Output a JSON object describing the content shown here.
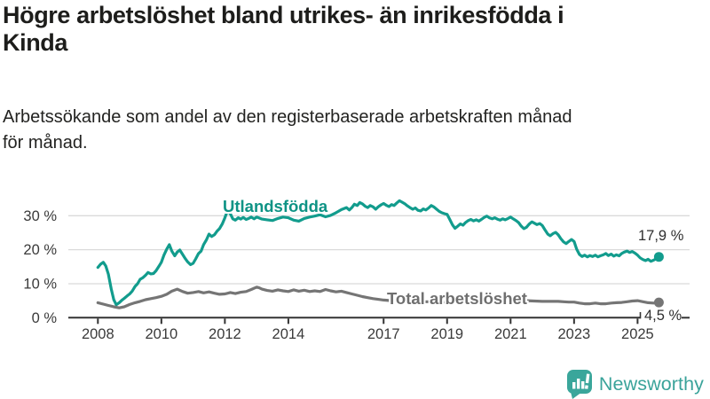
{
  "title_line1": "Högre arbetslöshet bland utrikes- än inrikesfödda i",
  "title_line2": "Kinda",
  "subtitle_line1": "Arbetssökande som andel av den registerbaserade arbetskraften månad",
  "subtitle_line2": "för månad.",
  "branding": {
    "logo_text": "Newsworthy",
    "logo_color": "#3aa69b"
  },
  "chart_data": {
    "type": "line",
    "title": "Högre arbetslöshet bland utrikes- än inrikesfödda i Kinda",
    "subtitle": "Arbetssökande som andel av den registerbaserade arbetskraften månad för månad.",
    "xlabel": "",
    "ylabel": "",
    "grid": "horizontal",
    "x_axis": {
      "ticks": [
        2008,
        2010,
        2012,
        2014,
        2017,
        2019,
        2021,
        2023,
        2025
      ],
      "labels": [
        "2008",
        "2010",
        "2012",
        "2014",
        "2017",
        "2019",
        "2021",
        "2023",
        "2025"
      ],
      "range": [
        2007.1,
        2026.4
      ]
    },
    "y_axis": {
      "ticks": [
        0,
        10,
        20,
        30
      ],
      "labels": [
        "0 %",
        "10 %",
        "20 %",
        "30 %"
      ],
      "range": [
        0,
        36
      ]
    },
    "colors": {
      "grid": "#dadada",
      "axis": "#333333",
      "tick_text": "#3a3a3a"
    },
    "series": [
      {
        "name": "Utlandsfödda",
        "color": "#129c8d",
        "end_label": "17,9 %",
        "end_value": 17.9,
        "points": [
          [
            2008.0,
            14.8
          ],
          [
            2008.08,
            15.7
          ],
          [
            2008.17,
            16.3
          ],
          [
            2008.25,
            15.2
          ],
          [
            2008.33,
            12.8
          ],
          [
            2008.42,
            8.5
          ],
          [
            2008.5,
            5.3
          ],
          [
            2008.58,
            3.8
          ],
          [
            2008.67,
            4.4
          ],
          [
            2008.75,
            5.1
          ],
          [
            2008.83,
            5.7
          ],
          [
            2008.92,
            6.4
          ],
          [
            2009.0,
            7.0
          ],
          [
            2009.08,
            7.8
          ],
          [
            2009.17,
            9.2
          ],
          [
            2009.25,
            10.0
          ],
          [
            2009.33,
            11.3
          ],
          [
            2009.42,
            11.8
          ],
          [
            2009.5,
            12.5
          ],
          [
            2009.58,
            13.3
          ],
          [
            2009.67,
            12.9
          ],
          [
            2009.75,
            13.0
          ],
          [
            2009.83,
            13.8
          ],
          [
            2009.92,
            15.1
          ],
          [
            2010.0,
            16.3
          ],
          [
            2010.08,
            18.4
          ],
          [
            2010.17,
            20.2
          ],
          [
            2010.25,
            21.5
          ],
          [
            2010.33,
            19.6
          ],
          [
            2010.42,
            18.2
          ],
          [
            2010.5,
            19.3
          ],
          [
            2010.58,
            19.9
          ],
          [
            2010.67,
            18.6
          ],
          [
            2010.75,
            17.4
          ],
          [
            2010.83,
            16.4
          ],
          [
            2010.92,
            15.6
          ],
          [
            2011.0,
            16.0
          ],
          [
            2011.08,
            17.3
          ],
          [
            2011.17,
            18.9
          ],
          [
            2011.25,
            19.6
          ],
          [
            2011.33,
            21.5
          ],
          [
            2011.42,
            22.9
          ],
          [
            2011.5,
            24.6
          ],
          [
            2011.58,
            23.9
          ],
          [
            2011.67,
            24.4
          ],
          [
            2011.75,
            25.4
          ],
          [
            2011.83,
            26.2
          ],
          [
            2011.92,
            27.6
          ],
          [
            2012.0,
            29.4
          ],
          [
            2012.08,
            31.4
          ],
          [
            2012.17,
            30.6
          ],
          [
            2012.25,
            29.1
          ],
          [
            2012.33,
            28.7
          ],
          [
            2012.42,
            29.4
          ],
          [
            2012.5,
            29.0
          ],
          [
            2012.58,
            29.5
          ],
          [
            2012.67,
            28.9
          ],
          [
            2012.75,
            29.2
          ],
          [
            2012.83,
            29.6
          ],
          [
            2012.92,
            29.1
          ],
          [
            2013.0,
            29.6
          ],
          [
            2013.17,
            29.0
          ],
          [
            2013.33,
            28.8
          ],
          [
            2013.5,
            28.6
          ],
          [
            2013.67,
            29.2
          ],
          [
            2013.83,
            29.6
          ],
          [
            2014.0,
            29.4
          ],
          [
            2014.17,
            28.7
          ],
          [
            2014.33,
            28.4
          ],
          [
            2014.5,
            29.2
          ],
          [
            2014.67,
            29.6
          ],
          [
            2014.83,
            29.9
          ],
          [
            2015.0,
            30.3
          ],
          [
            2015.17,
            29.7
          ],
          [
            2015.33,
            30.1
          ],
          [
            2015.5,
            30.9
          ],
          [
            2015.67,
            31.8
          ],
          [
            2015.83,
            32.4
          ],
          [
            2015.92,
            31.7
          ],
          [
            2016.0,
            32.4
          ],
          [
            2016.08,
            33.4
          ],
          [
            2016.17,
            33.0
          ],
          [
            2016.25,
            33.9
          ],
          [
            2016.33,
            33.5
          ],
          [
            2016.42,
            32.8
          ],
          [
            2016.5,
            32.4
          ],
          [
            2016.58,
            33.0
          ],
          [
            2016.67,
            32.6
          ],
          [
            2016.75,
            31.9
          ],
          [
            2016.83,
            32.6
          ],
          [
            2016.92,
            33.2
          ],
          [
            2017.0,
            33.6
          ],
          [
            2017.08,
            33.1
          ],
          [
            2017.17,
            32.7
          ],
          [
            2017.25,
            33.3
          ],
          [
            2017.33,
            33.0
          ],
          [
            2017.42,
            33.8
          ],
          [
            2017.5,
            34.4
          ],
          [
            2017.58,
            34.0
          ],
          [
            2017.67,
            33.5
          ],
          [
            2017.75,
            32.9
          ],
          [
            2017.83,
            32.4
          ],
          [
            2017.92,
            31.9
          ],
          [
            2018.0,
            32.3
          ],
          [
            2018.08,
            31.6
          ],
          [
            2018.17,
            31.4
          ],
          [
            2018.25,
            32.0
          ],
          [
            2018.33,
            31.7
          ],
          [
            2018.42,
            32.3
          ],
          [
            2018.5,
            33.0
          ],
          [
            2018.58,
            32.6
          ],
          [
            2018.67,
            31.9
          ],
          [
            2018.75,
            31.3
          ],
          [
            2018.83,
            30.9
          ],
          [
            2018.92,
            30.6
          ],
          [
            2019.0,
            30.4
          ],
          [
            2019.08,
            29.0
          ],
          [
            2019.17,
            27.3
          ],
          [
            2019.25,
            26.3
          ],
          [
            2019.33,
            26.9
          ],
          [
            2019.42,
            27.6
          ],
          [
            2019.5,
            27.2
          ],
          [
            2019.58,
            28.0
          ],
          [
            2019.67,
            28.6
          ],
          [
            2019.75,
            28.9
          ],
          [
            2019.83,
            28.5
          ],
          [
            2019.92,
            28.8
          ],
          [
            2020.0,
            28.4
          ],
          [
            2020.08,
            28.9
          ],
          [
            2020.17,
            29.5
          ],
          [
            2020.25,
            29.9
          ],
          [
            2020.33,
            29.4
          ],
          [
            2020.42,
            29.1
          ],
          [
            2020.5,
            29.4
          ],
          [
            2020.58,
            29.0
          ],
          [
            2020.67,
            28.7
          ],
          [
            2020.75,
            29.1
          ],
          [
            2020.83,
            28.8
          ],
          [
            2020.92,
            29.2
          ],
          [
            2021.0,
            29.6
          ],
          [
            2021.08,
            29.1
          ],
          [
            2021.17,
            28.6
          ],
          [
            2021.25,
            28.0
          ],
          [
            2021.33,
            27.0
          ],
          [
            2021.42,
            26.2
          ],
          [
            2021.5,
            26.6
          ],
          [
            2021.58,
            27.5
          ],
          [
            2021.67,
            28.2
          ],
          [
            2021.75,
            27.8
          ],
          [
            2021.83,
            27.4
          ],
          [
            2021.92,
            27.7
          ],
          [
            2022.0,
            27.1
          ],
          [
            2022.08,
            25.9
          ],
          [
            2022.17,
            24.6
          ],
          [
            2022.25,
            24.1
          ],
          [
            2022.33,
            24.7
          ],
          [
            2022.42,
            25.1
          ],
          [
            2022.5,
            24.4
          ],
          [
            2022.58,
            23.3
          ],
          [
            2022.67,
            22.3
          ],
          [
            2022.75,
            21.8
          ],
          [
            2022.83,
            22.4
          ],
          [
            2022.92,
            23.0
          ],
          [
            2023.0,
            22.4
          ],
          [
            2023.08,
            20.2
          ],
          [
            2023.17,
            18.6
          ],
          [
            2023.25,
            18.0
          ],
          [
            2023.33,
            18.4
          ],
          [
            2023.42,
            17.9
          ],
          [
            2023.5,
            18.3
          ],
          [
            2023.58,
            18.0
          ],
          [
            2023.67,
            18.4
          ],
          [
            2023.75,
            17.9
          ],
          [
            2023.83,
            18.2
          ],
          [
            2023.92,
            18.5
          ],
          [
            2024.0,
            18.9
          ],
          [
            2024.08,
            18.3
          ],
          [
            2024.17,
            18.7
          ],
          [
            2024.25,
            18.1
          ],
          [
            2024.33,
            18.5
          ],
          [
            2024.42,
            18.2
          ],
          [
            2024.5,
            18.9
          ],
          [
            2024.58,
            19.3
          ],
          [
            2024.67,
            19.6
          ],
          [
            2024.75,
            19.2
          ],
          [
            2024.83,
            19.5
          ],
          [
            2024.92,
            19.0
          ],
          [
            2025.0,
            18.4
          ],
          [
            2025.08,
            17.6
          ],
          [
            2025.17,
            17.1
          ],
          [
            2025.25,
            16.8
          ],
          [
            2025.33,
            17.2
          ],
          [
            2025.42,
            16.6
          ],
          [
            2025.5,
            16.9
          ],
          [
            2025.58,
            17.3
          ],
          [
            2025.67,
            17.9
          ]
        ]
      },
      {
        "name": "Total arbetslöshet",
        "color": "#757575",
        "end_label": "4,5 %",
        "end_value": 4.5,
        "points": [
          [
            2008.0,
            4.4
          ],
          [
            2008.17,
            4.0
          ],
          [
            2008.33,
            3.6
          ],
          [
            2008.5,
            3.2
          ],
          [
            2008.67,
            2.9
          ],
          [
            2008.83,
            3.2
          ],
          [
            2009.0,
            3.9
          ],
          [
            2009.17,
            4.4
          ],
          [
            2009.33,
            4.8
          ],
          [
            2009.5,
            5.3
          ],
          [
            2009.67,
            5.6
          ],
          [
            2009.83,
            5.9
          ],
          [
            2010.0,
            6.3
          ],
          [
            2010.17,
            6.9
          ],
          [
            2010.33,
            7.8
          ],
          [
            2010.5,
            8.4
          ],
          [
            2010.67,
            7.7
          ],
          [
            2010.83,
            7.2
          ],
          [
            2011.0,
            7.4
          ],
          [
            2011.17,
            7.7
          ],
          [
            2011.33,
            7.3
          ],
          [
            2011.5,
            7.6
          ],
          [
            2011.67,
            7.2
          ],
          [
            2011.83,
            6.9
          ],
          [
            2012.0,
            7.0
          ],
          [
            2012.17,
            7.4
          ],
          [
            2012.33,
            7.1
          ],
          [
            2012.5,
            7.5
          ],
          [
            2012.67,
            7.7
          ],
          [
            2012.83,
            8.3
          ],
          [
            2013.0,
            9.0
          ],
          [
            2013.08,
            8.8
          ],
          [
            2013.17,
            8.4
          ],
          [
            2013.33,
            8.0
          ],
          [
            2013.5,
            7.8
          ],
          [
            2013.67,
            8.2
          ],
          [
            2013.83,
            7.9
          ],
          [
            2014.0,
            7.7
          ],
          [
            2014.17,
            8.2
          ],
          [
            2014.33,
            7.8
          ],
          [
            2014.5,
            8.1
          ],
          [
            2014.67,
            7.7
          ],
          [
            2014.83,
            7.9
          ],
          [
            2015.0,
            7.7
          ],
          [
            2015.17,
            8.3
          ],
          [
            2015.33,
            7.9
          ],
          [
            2015.5,
            7.6
          ],
          [
            2015.67,
            7.8
          ],
          [
            2015.83,
            7.4
          ],
          [
            2016.0,
            7.0
          ],
          [
            2016.17,
            6.6
          ],
          [
            2016.33,
            6.2
          ],
          [
            2016.5,
            5.9
          ],
          [
            2016.67,
            5.6
          ],
          [
            2016.83,
            5.4
          ],
          [
            2017.0,
            5.2
          ],
          [
            2017.25,
            5.0
          ],
          [
            2017.5,
            4.9
          ],
          [
            2017.75,
            4.8
          ],
          [
            2018.0,
            4.8
          ],
          [
            2018.25,
            4.7
          ],
          [
            2018.5,
            4.7
          ],
          [
            2018.75,
            4.6
          ],
          [
            2019.0,
            4.6
          ],
          [
            2019.25,
            4.6
          ],
          [
            2019.5,
            4.7
          ],
          [
            2019.75,
            4.9
          ],
          [
            2020.0,
            5.1
          ],
          [
            2020.25,
            5.4
          ],
          [
            2020.5,
            5.6
          ],
          [
            2020.75,
            5.5
          ],
          [
            2021.0,
            5.3
          ],
          [
            2021.25,
            5.1
          ],
          [
            2021.5,
            5.0
          ],
          [
            2021.75,
            4.9
          ],
          [
            2022.0,
            4.8
          ],
          [
            2022.25,
            4.8
          ],
          [
            2022.5,
            4.8
          ],
          [
            2022.67,
            4.7
          ],
          [
            2022.83,
            4.6
          ],
          [
            2023.0,
            4.6
          ],
          [
            2023.17,
            4.3
          ],
          [
            2023.33,
            4.1
          ],
          [
            2023.5,
            4.1
          ],
          [
            2023.67,
            4.3
          ],
          [
            2023.83,
            4.1
          ],
          [
            2024.0,
            4.1
          ],
          [
            2024.17,
            4.3
          ],
          [
            2024.33,
            4.4
          ],
          [
            2024.5,
            4.5
          ],
          [
            2024.67,
            4.7
          ],
          [
            2024.83,
            4.9
          ],
          [
            2025.0,
            5.0
          ],
          [
            2025.17,
            4.7
          ],
          [
            2025.33,
            4.4
          ],
          [
            2025.5,
            4.3
          ],
          [
            2025.67,
            4.5
          ]
        ]
      }
    ]
  }
}
